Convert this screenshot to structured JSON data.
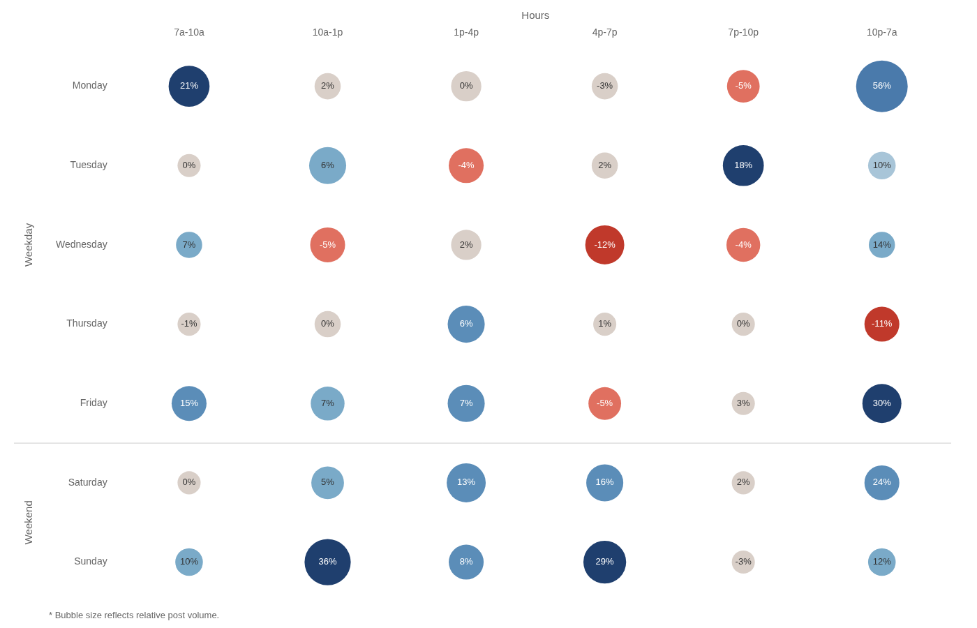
{
  "chart_data": {
    "type": "bubble",
    "xlabel": "Hours",
    "x_categories": [
      "7a-10a",
      "10a-1p",
      "1p-4p",
      "4p-7p",
      "7p-10p",
      "10p-7a"
    ],
    "y_categories": [
      "Monday",
      "Tuesday",
      "Wednesday",
      "Thursday",
      "Friday",
      "Saturday",
      "Sunday"
    ],
    "y_groups": [
      {
        "label": "Weekday",
        "from": "Monday",
        "to": "Friday"
      },
      {
        "label": "Weekend",
        "from": "Saturday",
        "to": "Sunday"
      }
    ],
    "values": [
      [
        21,
        2,
        0,
        -3,
        -5,
        56
      ],
      [
        0,
        6,
        -4,
        2,
        18,
        10
      ],
      [
        7,
        -5,
        2,
        -12,
        -4,
        14
      ],
      [
        -1,
        0,
        6,
        1,
        0,
        -11
      ],
      [
        15,
        7,
        7,
        -5,
        3,
        30
      ],
      [
        0,
        5,
        13,
        16,
        2,
        24
      ],
      [
        10,
        36,
        8,
        29,
        -3,
        12
      ]
    ],
    "value_labels": [
      [
        "21%",
        "2%",
        "0%",
        "-3%",
        "-5%",
        "56%"
      ],
      [
        "0%",
        "6%",
        "-4%",
        "2%",
        "18%",
        "10%"
      ],
      [
        "7%",
        "-5%",
        "2%",
        "-12%",
        "-4%",
        "14%"
      ],
      [
        "-1%",
        "0%",
        "6%",
        "1%",
        "0%",
        "-11%"
      ],
      [
        "15%",
        "7%",
        "7%",
        "-5%",
        "3%",
        "30%"
      ],
      [
        "0%",
        "5%",
        "13%",
        "16%",
        "2%",
        "24%"
      ],
      [
        "10%",
        "36%",
        "8%",
        "29%",
        "-3%",
        "12%"
      ]
    ],
    "bubble_sizes": [
      [
        2200,
        900,
        1200,
        900,
        1400,
        3500
      ],
      [
        700,
        1800,
        1600,
        900,
        2200,
        1000
      ],
      [
        900,
        1600,
        1200,
        2000,
        1500,
        900
      ],
      [
        700,
        900,
        1800,
        700,
        700,
        1600
      ],
      [
        1600,
        1500,
        1800,
        1400,
        700,
        2000
      ],
      [
        700,
        1400,
        2000,
        1800,
        700,
        1600
      ],
      [
        1000,
        2800,
        1600,
        2400,
        700,
        1000
      ]
    ],
    "colors": [
      [
        "#1f3f6e",
        "#d9cfc8",
        "#d9cfc8",
        "#d9cfc8",
        "#e07060",
        "#4a7aab"
      ],
      [
        "#d9cfc8",
        "#7aaac8",
        "#e07060",
        "#d9cfc8",
        "#1f3f6e",
        "#a8c5d8"
      ],
      [
        "#7aaac8",
        "#e07060",
        "#d9cfc8",
        "#c0392b",
        "#e07060",
        "#7aaac8"
      ],
      [
        "#d9cfc8",
        "#d9cfc8",
        "#5b8db8",
        "#d9cfc8",
        "#d9cfc8",
        "#c0392b"
      ],
      [
        "#5b8db8",
        "#7aaac8",
        "#5b8db8",
        "#e07060",
        "#d9cfc8",
        "#1f3f6e"
      ],
      [
        "#d9cfc8",
        "#7aaac8",
        "#5b8db8",
        "#5b8db8",
        "#d9cfc8",
        "#5b8db8"
      ],
      [
        "#7aaac8",
        "#1f3f6e",
        "#5b8db8",
        "#1f3f6e",
        "#d9cfc8",
        "#7aaac8"
      ]
    ],
    "data_labels": true,
    "grid": false,
    "footnote": "* Bubble size reflects relative post volume."
  }
}
